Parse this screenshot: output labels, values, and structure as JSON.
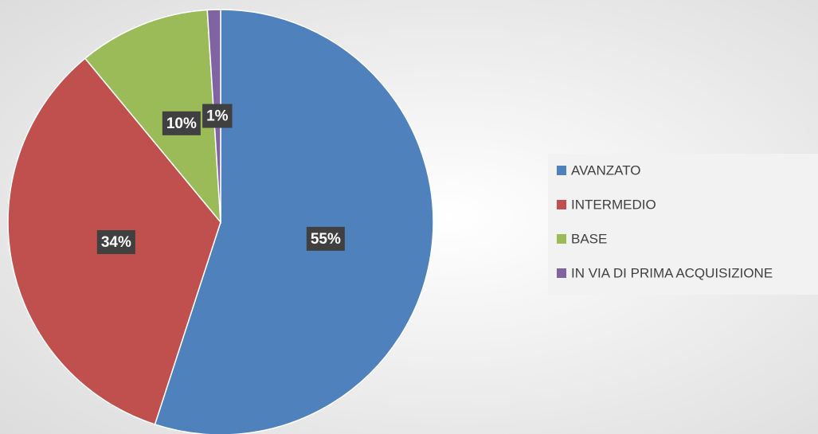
{
  "chart_data": {
    "type": "pie",
    "categories": [
      "AVANZATO",
      "INTERMEDIO",
      "BASE",
      "IN VIA DI PRIMA ACQUISIZIONE"
    ],
    "values": [
      55,
      34,
      10,
      1
    ],
    "value_labels": [
      "55%",
      "34%",
      "10%",
      "1%"
    ],
    "colors": [
      "#4f81bd",
      "#c0504d",
      "#9bbb59",
      "#8064a2"
    ],
    "legend": "right"
  }
}
